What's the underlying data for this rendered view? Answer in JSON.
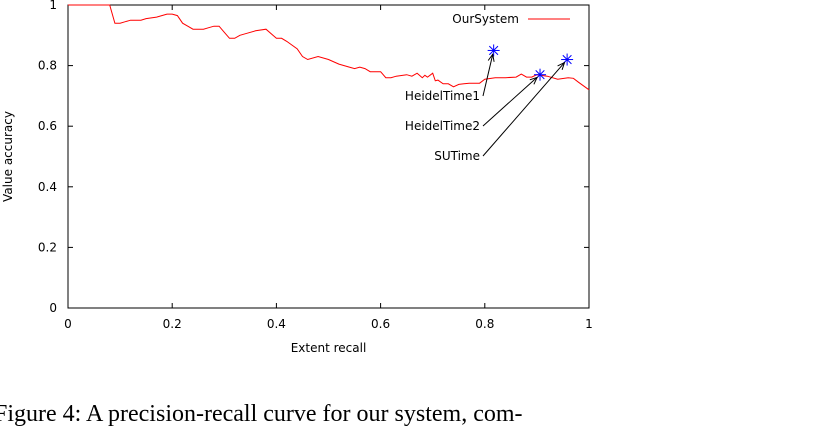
{
  "chart_data": {
    "type": "line",
    "xlabel": "Extent recall",
    "ylabel": "Value accuracy",
    "xlim": [
      0,
      1
    ],
    "ylim": [
      0,
      1
    ],
    "x_ticks": [
      "0",
      "0.2",
      "0.4",
      "0.6",
      "0.8",
      "1"
    ],
    "y_ticks": [
      "0",
      "0.2",
      "0.4",
      "0.6",
      "0.8",
      "1"
    ],
    "grid": false,
    "legend_position": "top-right",
    "series": [
      {
        "name": "OurSystem",
        "color": "#ff0000",
        "x": [
          0.0,
          0.01,
          0.08,
          0.09,
          0.1,
          0.11,
          0.12,
          0.14,
          0.15,
          0.17,
          0.18,
          0.19,
          0.2,
          0.21,
          0.22,
          0.23,
          0.24,
          0.25,
          0.26,
          0.27,
          0.28,
          0.29,
          0.3,
          0.31,
          0.32,
          0.33,
          0.34,
          0.36,
          0.38,
          0.39,
          0.4,
          0.41,
          0.42,
          0.44,
          0.45,
          0.46,
          0.48,
          0.5,
          0.52,
          0.54,
          0.55,
          0.56,
          0.57,
          0.58,
          0.6,
          0.61,
          0.62,
          0.63,
          0.65,
          0.66,
          0.67,
          0.68,
          0.685,
          0.69,
          0.7,
          0.705,
          0.71,
          0.72,
          0.73,
          0.74,
          0.75,
          0.76,
          0.77,
          0.78,
          0.79,
          0.8,
          0.82,
          0.84,
          0.86,
          0.87,
          0.88,
          0.89,
          0.9,
          0.92,
          0.94,
          0.96,
          0.97,
          0.98,
          1.0
        ],
        "y": [
          1.0,
          1.0,
          1.0,
          0.94,
          0.94,
          0.945,
          0.95,
          0.95,
          0.955,
          0.96,
          0.965,
          0.97,
          0.97,
          0.965,
          0.94,
          0.93,
          0.92,
          0.92,
          0.92,
          0.925,
          0.93,
          0.93,
          0.91,
          0.89,
          0.89,
          0.9,
          0.905,
          0.915,
          0.92,
          0.905,
          0.89,
          0.89,
          0.88,
          0.855,
          0.83,
          0.82,
          0.83,
          0.82,
          0.805,
          0.795,
          0.79,
          0.795,
          0.79,
          0.78,
          0.78,
          0.76,
          0.76,
          0.765,
          0.77,
          0.765,
          0.775,
          0.76,
          0.768,
          0.762,
          0.775,
          0.75,
          0.752,
          0.74,
          0.74,
          0.73,
          0.738,
          0.74,
          0.742,
          0.742,
          0.742,
          0.755,
          0.76,
          0.76,
          0.762,
          0.772,
          0.762,
          0.762,
          0.77,
          0.765,
          0.755,
          0.76,
          0.758,
          0.745,
          0.72
        ]
      }
    ],
    "points": [
      {
        "name": "HeidelTime1",
        "x": 0.817,
        "y": 0.85,
        "color": "#0000ff",
        "marker": "star"
      },
      {
        "name": "HeidelTime2",
        "x": 0.906,
        "y": 0.77,
        "color": "#0000ff",
        "marker": "star"
      },
      {
        "name": "SUTime",
        "x": 0.958,
        "y": 0.82,
        "color": "#0000ff",
        "marker": "star"
      }
    ]
  },
  "caption": "Figure 4:  A precision-recall curve for our system, com-"
}
